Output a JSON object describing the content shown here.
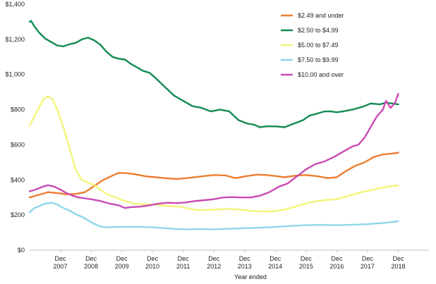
{
  "chart_data": {
    "type": "line",
    "title": "",
    "xlabel": "Year ended",
    "ylabel": "",
    "ylim": [
      0,
      1400
    ],
    "xlim": [
      2006.0,
      2019.0
    ],
    "grid": false,
    "legend_position": "top-right",
    "yticks": [
      {
        "value": 0,
        "label": "$0"
      },
      {
        "value": 200,
        "label": "$200"
      },
      {
        "value": 400,
        "label": "$400"
      },
      {
        "value": 600,
        "label": "$600"
      },
      {
        "value": 800,
        "label": "$800"
      },
      {
        "value": 1000,
        "label": "$1,000"
      },
      {
        "value": 1200,
        "label": "$1,200"
      },
      {
        "value": 1400,
        "label": "$1,400"
      }
    ],
    "xticks": [
      {
        "value": 2007,
        "line1": "Dec",
        "line2": "2007"
      },
      {
        "value": 2008,
        "line1": "Dec",
        "line2": "2008"
      },
      {
        "value": 2009,
        "line1": "Dec",
        "line2": "2009"
      },
      {
        "value": 2010,
        "line1": "Dec",
        "line2": "2010"
      },
      {
        "value": 2011,
        "line1": "Dec",
        "line2": "2011"
      },
      {
        "value": 2012,
        "line1": "Dec",
        "line2": "2012"
      },
      {
        "value": 2013,
        "line1": "Dec",
        "line2": "2013"
      },
      {
        "value": 2014,
        "line1": "Dec",
        "line2": "2014"
      },
      {
        "value": 2015,
        "line1": "Dec",
        "line2": "2015"
      },
      {
        "value": 2016,
        "line1": "Dec",
        "line2": "2016"
      },
      {
        "value": 2017,
        "line1": "Dec",
        "line2": "2017"
      },
      {
        "value": 2018,
        "line1": "Dec",
        "line2": "2018"
      }
    ],
    "series": [
      {
        "name": "$2.49 and under",
        "color": "#ed7d31",
        "points": [
          [
            2006.0,
            300
          ],
          [
            2006.3,
            315
          ],
          [
            2006.6,
            330
          ],
          [
            2006.9,
            325
          ],
          [
            2007.2,
            318
          ],
          [
            2007.5,
            320
          ],
          [
            2007.8,
            330
          ],
          [
            2008.1,
            365
          ],
          [
            2008.4,
            400
          ],
          [
            2008.7,
            425
          ],
          [
            2008.9,
            440
          ],
          [
            2009.2,
            438
          ],
          [
            2009.5,
            430
          ],
          [
            2009.8,
            420
          ],
          [
            2010.1,
            415
          ],
          [
            2010.4,
            410
          ],
          [
            2010.8,
            405
          ],
          [
            2011.2,
            412
          ],
          [
            2011.6,
            420
          ],
          [
            2012.0,
            428
          ],
          [
            2012.4,
            425
          ],
          [
            2012.7,
            410
          ],
          [
            2013.0,
            420
          ],
          [
            2013.4,
            430
          ],
          [
            2013.7,
            428
          ],
          [
            2014.0,
            422
          ],
          [
            2014.3,
            415
          ],
          [
            2014.7,
            425
          ],
          [
            2015.0,
            428
          ],
          [
            2015.4,
            420
          ],
          [
            2015.7,
            410
          ],
          [
            2016.0,
            415
          ],
          [
            2016.3,
            450
          ],
          [
            2016.6,
            480
          ],
          [
            2016.9,
            500
          ],
          [
            2017.2,
            530
          ],
          [
            2017.5,
            545
          ],
          [
            2017.8,
            550
          ],
          [
            2018.0,
            555
          ]
        ]
      },
      {
        "name": "$2.50 to $4.99",
        "color": "#138a52",
        "points": [
          [
            2006.0,
            1300
          ],
          [
            2006.05,
            1305
          ],
          [
            2006.15,
            1275
          ],
          [
            2006.3,
            1240
          ],
          [
            2006.5,
            1205
          ],
          [
            2006.7,
            1185
          ],
          [
            2006.9,
            1165
          ],
          [
            2007.1,
            1160
          ],
          [
            2007.3,
            1172
          ],
          [
            2007.5,
            1180
          ],
          [
            2007.7,
            1200
          ],
          [
            2007.9,
            1210
          ],
          [
            2008.1,
            1195
          ],
          [
            2008.3,
            1170
          ],
          [
            2008.5,
            1130
          ],
          [
            2008.7,
            1100
          ],
          [
            2008.9,
            1090
          ],
          [
            2009.1,
            1085
          ],
          [
            2009.3,
            1060
          ],
          [
            2009.5,
            1040
          ],
          [
            2009.7,
            1020
          ],
          [
            2009.9,
            1010
          ],
          [
            2010.1,
            980
          ],
          [
            2010.4,
            930
          ],
          [
            2010.7,
            880
          ],
          [
            2011.0,
            850
          ],
          [
            2011.3,
            820
          ],
          [
            2011.6,
            810
          ],
          [
            2011.9,
            790
          ],
          [
            2012.2,
            800
          ],
          [
            2012.5,
            790
          ],
          [
            2012.8,
            740
          ],
          [
            2013.1,
            720
          ],
          [
            2013.3,
            715
          ],
          [
            2013.5,
            700
          ],
          [
            2013.7,
            705
          ],
          [
            2014.0,
            705
          ],
          [
            2014.3,
            700
          ],
          [
            2014.6,
            720
          ],
          [
            2014.9,
            740
          ],
          [
            2015.1,
            765
          ],
          [
            2015.4,
            780
          ],
          [
            2015.6,
            790
          ],
          [
            2015.8,
            790
          ],
          [
            2016.0,
            785
          ],
          [
            2016.2,
            790
          ],
          [
            2016.5,
            800
          ],
          [
            2016.7,
            810
          ],
          [
            2016.9,
            820
          ],
          [
            2017.1,
            835
          ],
          [
            2017.4,
            830
          ],
          [
            2017.6,
            840
          ],
          [
            2017.8,
            835
          ],
          [
            2018.0,
            830
          ]
        ]
      },
      {
        "name": "$5.00 to $7.49",
        "color": "#f3f57a",
        "points": [
          [
            2006.0,
            710
          ],
          [
            2006.15,
            760
          ],
          [
            2006.3,
            810
          ],
          [
            2006.45,
            860
          ],
          [
            2006.6,
            875
          ],
          [
            2006.75,
            860
          ],
          [
            2006.9,
            800
          ],
          [
            2007.1,
            700
          ],
          [
            2007.3,
            580
          ],
          [
            2007.5,
            460
          ],
          [
            2007.7,
            400
          ],
          [
            2007.9,
            385
          ],
          [
            2008.1,
            370
          ],
          [
            2008.3,
            345
          ],
          [
            2008.5,
            320
          ],
          [
            2008.8,
            300
          ],
          [
            2009.1,
            280
          ],
          [
            2009.4,
            265
          ],
          [
            2009.7,
            260
          ],
          [
            2010.0,
            260
          ],
          [
            2010.3,
            255
          ],
          [
            2010.6,
            250
          ],
          [
            2010.9,
            248
          ],
          [
            2011.2,
            235
          ],
          [
            2011.5,
            228
          ],
          [
            2011.8,
            230
          ],
          [
            2012.1,
            232
          ],
          [
            2012.5,
            235
          ],
          [
            2012.9,
            230
          ],
          [
            2013.3,
            222
          ],
          [
            2013.7,
            220
          ],
          [
            2014.0,
            222
          ],
          [
            2014.4,
            235
          ],
          [
            2014.8,
            255
          ],
          [
            2015.2,
            275
          ],
          [
            2015.6,
            285
          ],
          [
            2016.0,
            290
          ],
          [
            2016.4,
            310
          ],
          [
            2016.8,
            330
          ],
          [
            2017.2,
            345
          ],
          [
            2017.6,
            360
          ],
          [
            2018.0,
            370
          ]
        ]
      },
      {
        "name": "$7.50 to $9.99",
        "color": "#8fd6ea",
        "points": [
          [
            2006.0,
            215
          ],
          [
            2006.15,
            240
          ],
          [
            2006.3,
            250
          ],
          [
            2006.5,
            265
          ],
          [
            2006.7,
            270
          ],
          [
            2006.9,
            260
          ],
          [
            2007.1,
            240
          ],
          [
            2007.3,
            225
          ],
          [
            2007.5,
            205
          ],
          [
            2007.7,
            190
          ],
          [
            2007.9,
            170
          ],
          [
            2008.1,
            150
          ],
          [
            2008.3,
            135
          ],
          [
            2008.5,
            130
          ],
          [
            2008.8,
            132
          ],
          [
            2009.2,
            133
          ],
          [
            2009.6,
            133
          ],
          [
            2010.0,
            130
          ],
          [
            2010.4,
            125
          ],
          [
            2010.8,
            120
          ],
          [
            2011.2,
            118
          ],
          [
            2011.6,
            120
          ],
          [
            2012.0,
            118
          ],
          [
            2012.5,
            122
          ],
          [
            2013.0,
            125
          ],
          [
            2013.5,
            128
          ],
          [
            2014.0,
            132
          ],
          [
            2014.5,
            138
          ],
          [
            2015.0,
            142
          ],
          [
            2015.5,
            144
          ],
          [
            2016.0,
            142
          ],
          [
            2016.5,
            145
          ],
          [
            2017.0,
            148
          ],
          [
            2017.5,
            155
          ],
          [
            2018.0,
            165
          ]
        ]
      },
      {
        "name": "$10.00 and over",
        "color": "#c94ab3",
        "points": [
          [
            2006.0,
            335
          ],
          [
            2006.2,
            345
          ],
          [
            2006.4,
            360
          ],
          [
            2006.6,
            370
          ],
          [
            2006.8,
            362
          ],
          [
            2007.0,
            345
          ],
          [
            2007.2,
            325
          ],
          [
            2007.4,
            310
          ],
          [
            2007.6,
            300
          ],
          [
            2007.8,
            295
          ],
          [
            2008.0,
            290
          ],
          [
            2008.3,
            280
          ],
          [
            2008.6,
            265
          ],
          [
            2008.9,
            255
          ],
          [
            2009.1,
            240
          ],
          [
            2009.3,
            245
          ],
          [
            2009.6,
            248
          ],
          [
            2009.9,
            255
          ],
          [
            2010.2,
            265
          ],
          [
            2010.5,
            270
          ],
          [
            2010.8,
            268
          ],
          [
            2011.1,
            272
          ],
          [
            2011.4,
            280
          ],
          [
            2011.7,
            285
          ],
          [
            2012.0,
            290
          ],
          [
            2012.3,
            300
          ],
          [
            2012.6,
            302
          ],
          [
            2012.9,
            300
          ],
          [
            2013.2,
            300
          ],
          [
            2013.5,
            310
          ],
          [
            2013.8,
            330
          ],
          [
            2014.1,
            360
          ],
          [
            2014.4,
            380
          ],
          [
            2014.7,
            420
          ],
          [
            2015.0,
            460
          ],
          [
            2015.3,
            490
          ],
          [
            2015.6,
            505
          ],
          [
            2015.9,
            530
          ],
          [
            2016.2,
            560
          ],
          [
            2016.5,
            590
          ],
          [
            2016.7,
            600
          ],
          [
            2016.9,
            640
          ],
          [
            2017.1,
            700
          ],
          [
            2017.3,
            760
          ],
          [
            2017.5,
            800
          ],
          [
            2017.6,
            850
          ],
          [
            2017.75,
            810
          ],
          [
            2017.9,
            840
          ],
          [
            2018.0,
            890
          ]
        ]
      }
    ]
  }
}
